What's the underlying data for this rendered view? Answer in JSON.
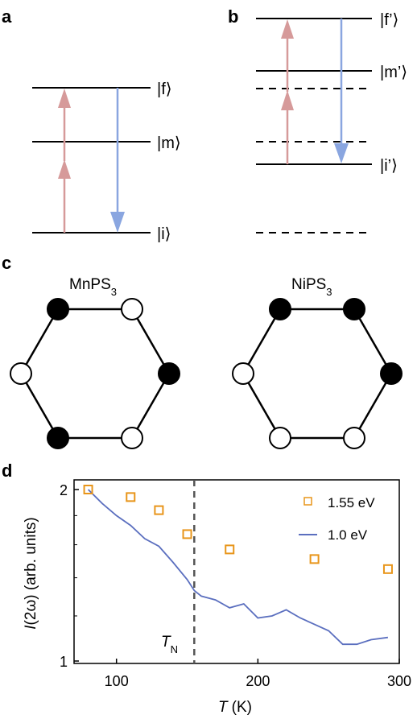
{
  "panels": {
    "a": {
      "label": "a",
      "levels": [
        {
          "id": "f",
          "label": "|f⟩"
        },
        {
          "id": "m",
          "label": "|m⟩"
        },
        {
          "id": "i",
          "label": "|i⟩"
        }
      ]
    },
    "b": {
      "label": "b",
      "levels": [
        {
          "id": "f",
          "label": "|f’⟩"
        },
        {
          "id": "m",
          "label": "|m’⟩"
        },
        {
          "id": "i",
          "label": "|i’⟩"
        }
      ]
    },
    "c": {
      "label": "c",
      "left_title": "MnPS",
      "left_sub": "3",
      "right_title": "NiPS",
      "right_sub": "3",
      "left_spins": [
        "up",
        "down",
        "up",
        "down",
        "up",
        "down"
      ],
      "right_spins": [
        "up",
        "up",
        "up",
        "down",
        "down",
        "down"
      ]
    },
    "d": {
      "label": "d",
      "tn_label": "T",
      "tn_sub": "N"
    }
  },
  "colors": {
    "up_arrow": "#d69a9a",
    "down_arrow": "#8aa6e0",
    "square": "#e8951a",
    "line": "#5b6fbf",
    "dashed_tn": "#555555"
  },
  "chart_data": {
    "type": "scatter",
    "xlabel": "T (K)",
    "xlabel_italic": "T",
    "xlabel_unit": "(K)",
    "ylabel_italic": "I",
    "ylabel_rest": "(2ω) (arb. units)",
    "x_ticks": [
      100,
      200,
      300
    ],
    "y_ticks": [
      1,
      2
    ],
    "xlim": [
      70,
      300
    ],
    "ylim": [
      1,
      2
    ],
    "y_scale": "log",
    "tn": 155,
    "legend_position": "top-right",
    "series": [
      {
        "name": "1.55 eV",
        "style": "open-square",
        "x": [
          80,
          110,
          130,
          150,
          180,
          240,
          292
        ],
        "y": [
          2.0,
          1.94,
          1.84,
          1.67,
          1.57,
          1.51,
          1.45
        ]
      },
      {
        "name": "1.0 eV",
        "style": "line",
        "x": [
          80,
          90,
          100,
          110,
          120,
          130,
          140,
          150,
          155,
          160,
          170,
          180,
          190,
          200,
          210,
          220,
          230,
          240,
          250,
          260,
          270,
          280,
          292
        ],
        "y": [
          2.0,
          1.89,
          1.8,
          1.73,
          1.64,
          1.59,
          1.49,
          1.39,
          1.33,
          1.3,
          1.28,
          1.24,
          1.26,
          1.19,
          1.2,
          1.23,
          1.19,
          1.16,
          1.13,
          1.07,
          1.07,
          1.09,
          1.1
        ]
      }
    ]
  }
}
